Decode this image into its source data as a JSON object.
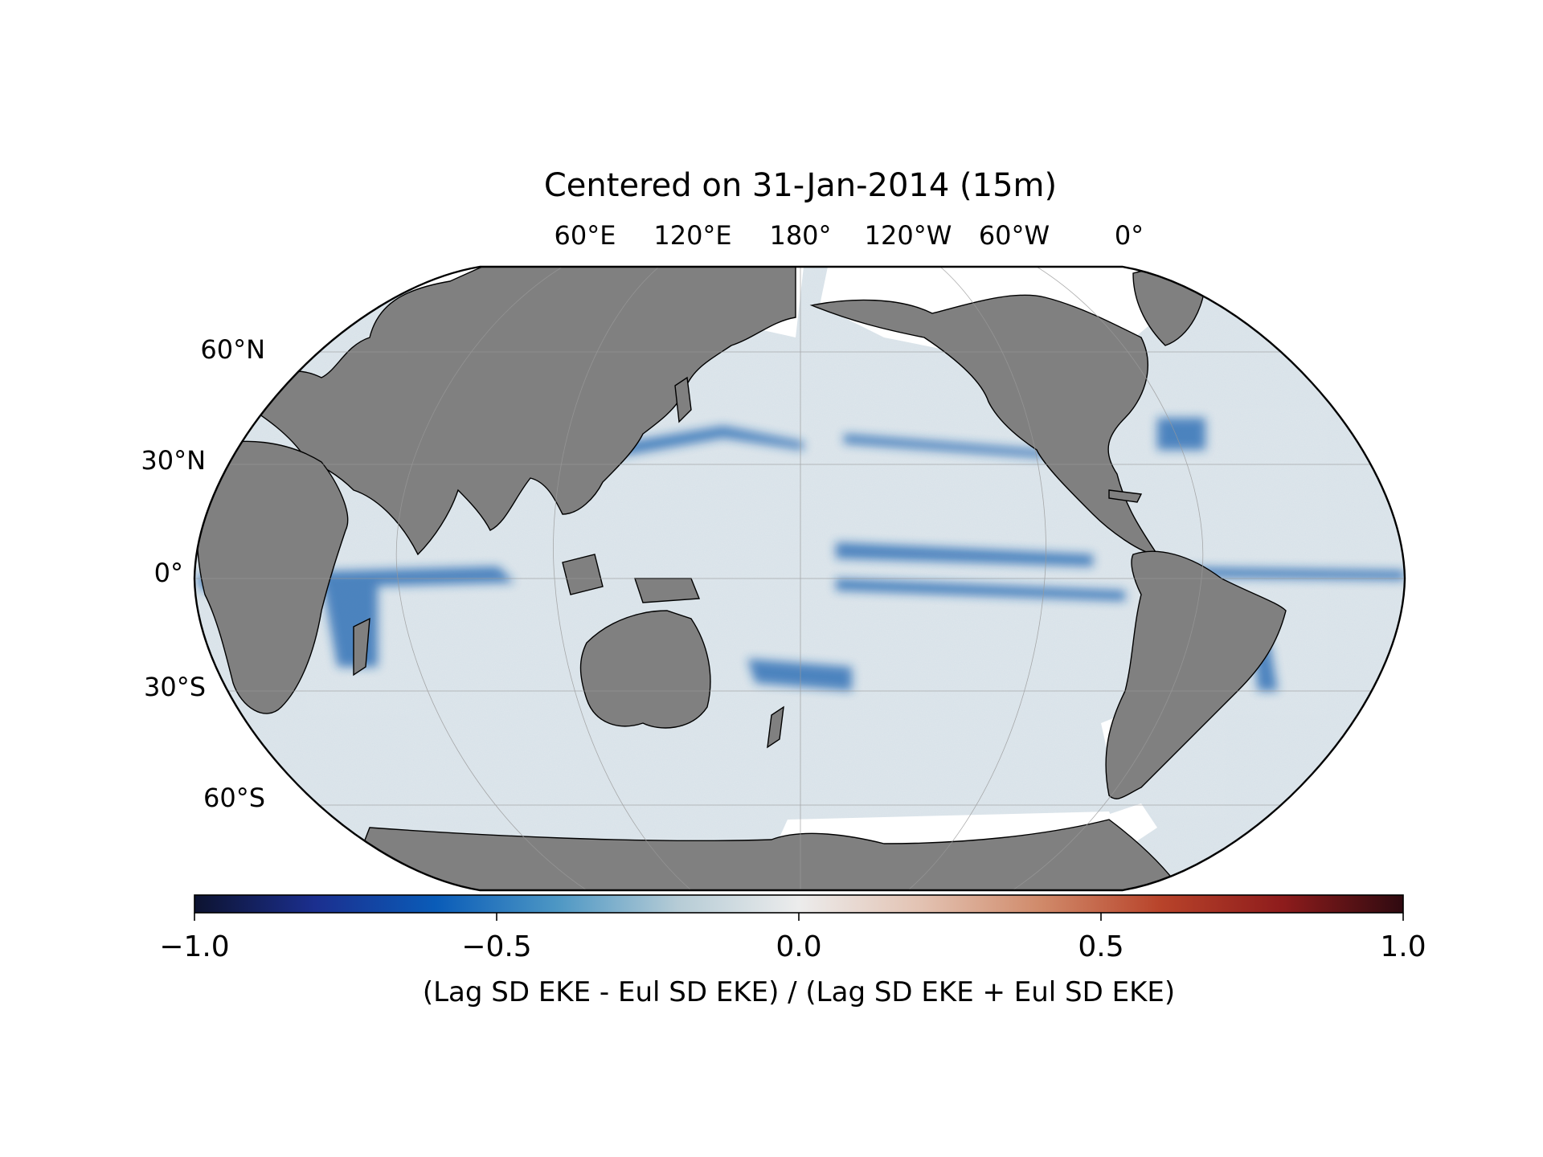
{
  "title": "Centered on 31-Jan-2014 (15m)",
  "longitude_labels": [
    "60°E",
    "120°E",
    "180°",
    "120°W",
    "60°W",
    "0°"
  ],
  "latitude_labels": [
    "60°N",
    "30°N",
    "0°",
    "30°S",
    "60°S"
  ],
  "colorbar": {
    "ticks": [
      "−1.0",
      "−0.5",
      "0.0",
      "0.5",
      "1.0"
    ],
    "range": [
      -1.0,
      1.0
    ],
    "label": "(Lag SD EKE - Eul SD EKE) / (Lag SD EKE + Eul SD EKE)",
    "colormap": [
      "#0d1330",
      "#1b2f8f",
      "#0a5cb8",
      "#4d97c4",
      "#b6ccd6",
      "#ececec",
      "#e3c3b3",
      "#d08a6a",
      "#b8432a",
      "#8e1c1c",
      "#2f0a10"
    ]
  },
  "colors": {
    "land": "#808080",
    "ice": "#ffffff",
    "ocean_base": "#dfe7ec",
    "negative_band": "#1f63b0",
    "gridline": "#999999"
  }
}
